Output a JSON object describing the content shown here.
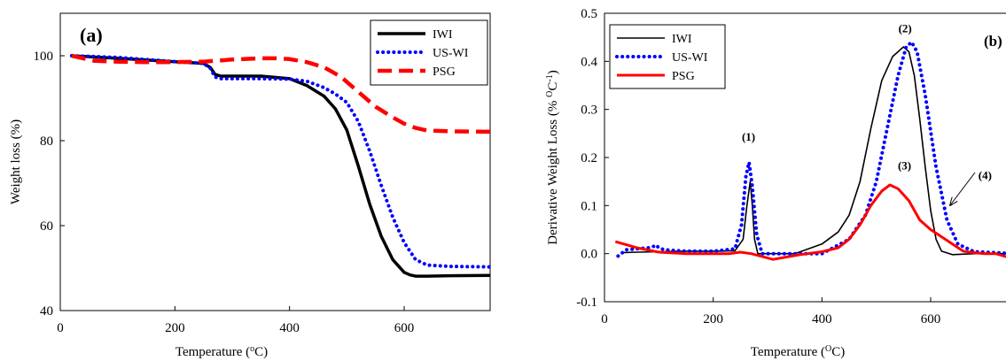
{
  "chart_data": [
    {
      "type": "line",
      "panel_label": "(a)",
      "xlabel": "Temperature (",
      "xlabel_sup": "o",
      "xlabel_end": "C)",
      "ylabel": "Weight loss (%)",
      "xlim": [
        0,
        750
      ],
      "ylim": [
        40,
        110
      ],
      "xticks": [
        0,
        200,
        400,
        600
      ],
      "yticks": [
        40,
        60,
        80,
        100
      ],
      "grid": false,
      "legend_position": "top-right",
      "series": [
        {
          "name": "IWI",
          "color": "#000000",
          "style": "solid",
          "x": [
            20,
            100,
            200,
            250,
            262,
            270,
            280,
            300,
            350,
            400,
            430,
            460,
            480,
            500,
            520,
            540,
            560,
            580,
            600,
            610,
            620,
            640,
            680,
            750
          ],
          "y": [
            100,
            99.4,
            98.6,
            98.2,
            97.2,
            95.6,
            95.2,
            95.2,
            95.2,
            94.6,
            93,
            90.5,
            87.5,
            82.5,
            74,
            65,
            57.5,
            52,
            49,
            48.4,
            48.1,
            48.1,
            48.2,
            48.3
          ]
        },
        {
          "name": "US-WI",
          "color": "#0000ff",
          "style": "dotted",
          "x": [
            20,
            100,
            200,
            250,
            262,
            270,
            280,
            300,
            350,
            400,
            430,
            460,
            480,
            500,
            520,
            540,
            560,
            580,
            600,
            620,
            640,
            680,
            750
          ],
          "y": [
            100,
            99.6,
            98.6,
            98.2,
            97,
            95,
            94.6,
            94.6,
            94.6,
            94.5,
            94,
            92.5,
            91,
            89,
            84.5,
            77.5,
            69.5,
            62,
            56,
            52,
            50.7,
            50.4,
            50.3
          ]
        },
        {
          "name": "PSG",
          "color": "#ff0000",
          "style": "dashed",
          "x": [
            20,
            60,
            100,
            150,
            200,
            250,
            300,
            350,
            380,
            400,
            430,
            460,
            490,
            520,
            550,
            580,
            600,
            620,
            640,
            680,
            750
          ],
          "y": [
            100,
            98.8,
            98.6,
            98.5,
            98.5,
            98.6,
            99.1,
            99.4,
            99.4,
            99.2,
            98.5,
            97.3,
            95,
            91.5,
            88,
            85.5,
            84,
            83,
            82.4,
            82.2,
            82.1
          ]
        }
      ]
    },
    {
      "type": "line",
      "panel_label": "(b)",
      "xlabel": "Temperature (",
      "xlabel_sup": "O",
      "xlabel_end": "C)",
      "ylabel": "Derivative Weight Loss (% ",
      "ylabel_sup": "O",
      "ylabel_c": "C",
      "ylabel_sup2": "-1",
      "ylabel_end": ")",
      "xlim": [
        0,
        750
      ],
      "ylim": [
        -0.1,
        0.5
      ],
      "xticks": [
        0,
        200,
        400,
        600
      ],
      "yticks": [
        -0.1,
        0.0,
        0.1,
        0.2,
        0.3,
        0.4,
        0.5
      ],
      "ytick_labels": [
        "-0.1",
        "0.0",
        "0.1",
        "0.2",
        "0.3",
        "0.4",
        "0.5"
      ],
      "grid": false,
      "legend_position": "top-left",
      "annotations": [
        {
          "text": "(1)",
          "x": 265,
          "y": 0.235
        },
        {
          "text": "(2)",
          "x": 553,
          "y": 0.46
        },
        {
          "text": "(3)",
          "x": 552,
          "y": 0.175
        },
        {
          "text": "(4)",
          "x": 700,
          "y": 0.155
        }
      ],
      "series": [
        {
          "name": "IWI",
          "color": "#000000",
          "style": "solid",
          "x": [
            30,
            60,
            100,
            150,
            200,
            240,
            255,
            262,
            268,
            272,
            276,
            282,
            300,
            350,
            400,
            430,
            450,
            470,
            490,
            510,
            530,
            550,
            560,
            570,
            580,
            590,
            600,
            610,
            620,
            640,
            680,
            720,
            750
          ],
          "y": [
            0.002,
            0.003,
            0.004,
            0.005,
            0.005,
            0.006,
            0.03,
            0.1,
            0.15,
            0.1,
            0.03,
            0.0,
            0.0,
            0.0,
            0.02,
            0.045,
            0.08,
            0.15,
            0.26,
            0.36,
            0.41,
            0.43,
            0.42,
            0.37,
            0.28,
            0.18,
            0.09,
            0.03,
            0.005,
            -0.002,
            0.0,
            0.0,
            0.0
          ]
        },
        {
          "name": "US-WI",
          "color": "#0000ff",
          "style": "dotted",
          "x": [
            25,
            40,
            60,
            80,
            90,
            95,
            100,
            110,
            150,
            200,
            240,
            252,
            260,
            266,
            272,
            280,
            290,
            300,
            350,
            400,
            450,
            480,
            500,
            520,
            540,
            555,
            565,
            575,
            590,
            610,
            630,
            650,
            680,
            720,
            750
          ],
          "y": [
            -0.005,
            0.008,
            0.01,
            0.012,
            0.015,
            0.018,
            0.012,
            0.008,
            0.005,
            0.005,
            0.01,
            0.06,
            0.16,
            0.19,
            0.14,
            0.04,
            0.0,
            0.0,
            0.0,
            0.0,
            0.03,
            0.08,
            0.15,
            0.26,
            0.37,
            0.43,
            0.44,
            0.42,
            0.33,
            0.18,
            0.07,
            0.02,
            0.004,
            0.002,
            0.0
          ]
        },
        {
          "name": "PSG",
          "color": "#ff0000",
          "style": "solid-thick",
          "x": [
            20,
            60,
            100,
            150,
            200,
            230,
            250,
            270,
            290,
            310,
            330,
            360,
            400,
            430,
            450,
            470,
            490,
            510,
            525,
            540,
            560,
            580,
            600,
            620,
            640,
            660,
            680,
            700,
            720,
            750
          ],
          "y": [
            0.025,
            0.012,
            0.003,
            0.0,
            0.0,
            0.0,
            0.003,
            0.0,
            -0.006,
            -0.012,
            -0.008,
            -0.002,
            0.004,
            0.012,
            0.03,
            0.06,
            0.1,
            0.13,
            0.143,
            0.135,
            0.11,
            0.07,
            0.05,
            0.035,
            0.02,
            0.005,
            0.002,
            0.0,
            0.0,
            -0.01
          ]
        }
      ]
    }
  ]
}
